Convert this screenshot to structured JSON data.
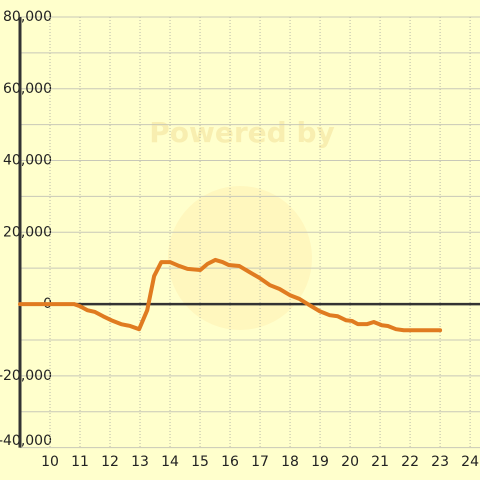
{
  "chart_data": {
    "type": "line",
    "watermark": "Powered by",
    "x": [
      9,
      10.8,
      11,
      11.24,
      11.5,
      11.77,
      12.04,
      12.37,
      12.67,
      12.97,
      13.24,
      13.47,
      13.71,
      14,
      14.31,
      14.58,
      15.01,
      15.25,
      15.51,
      15.75,
      15.95,
      16.31,
      16.65,
      16.98,
      17.32,
      17.65,
      17.99,
      18.32,
      18.65,
      18.99,
      19.32,
      19.59,
      19.86,
      20.06,
      20.26,
      20.56,
      20.79,
      21.06,
      21.26,
      21.53,
      21.79,
      23
    ],
    "series": [
      {
        "color": "#e07b20",
        "values": [
          0,
          0,
          -600,
          -1700,
          -2200,
          -3400,
          -4500,
          -5600,
          -6100,
          -7000,
          -1700,
          7800,
          11700,
          11700,
          10600,
          9800,
          9500,
          11200,
          12300,
          11700,
          10900,
          10600,
          8900,
          7300,
          5300,
          4200,
          2500,
          1400,
          -300,
          -2000,
          -3100,
          -3400,
          -4500,
          -4700,
          -5600,
          -5600,
          -5000,
          -5900,
          -6100,
          -7000,
          -7300,
          -7300
        ]
      }
    ],
    "xlim": [
      9,
      24.33
    ],
    "xticks": [
      10,
      11,
      12,
      13,
      14,
      15,
      16,
      17,
      18,
      19,
      20,
      21,
      22,
      23,
      24
    ],
    "ylim": [
      -40000,
      80000
    ],
    "yticks": [
      {
        "value": -40000,
        "label": "-40,000"
      },
      {
        "value": -20000,
        "label": "-20,000"
      },
      0,
      {
        "value": 20000,
        "label": "20,000"
      },
      {
        "value": 40000,
        "label": "40,000"
      },
      {
        "value": 60000,
        "label": "60,000"
      },
      {
        "value": 80000,
        "label": "80,000"
      }
    ],
    "yminor": [
      -30000,
      -10000,
      10000,
      30000,
      50000,
      70000
    ],
    "grid": true
  }
}
